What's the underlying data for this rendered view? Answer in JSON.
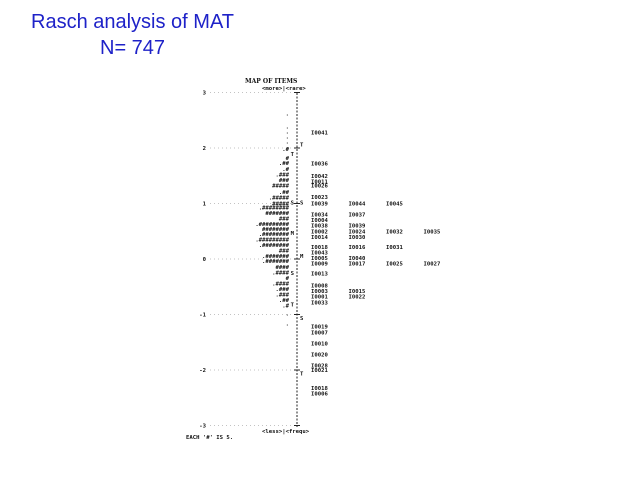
{
  "slide": {
    "title_line1": "Rasch analysis of MAT",
    "title_line2": "N= 747"
  },
  "map": {
    "header": "MAP OF ITEMS",
    "top_label": "<more>|<rare>",
    "bottom_label": "<less>|<frequ>",
    "footer": "EACH '#' IS 5.",
    "axis_ticks": [
      {
        "label": "3",
        "value": 3
      },
      {
        "label": "2",
        "value": 2
      },
      {
        "label": "1",
        "value": 1
      },
      {
        "label": "0",
        "value": 0
      },
      {
        "label": "-1",
        "value": -1
      },
      {
        "label": "-2",
        "value": -2
      },
      {
        "label": "-3",
        "value": -3
      }
    ],
    "person_markers": [
      {
        "label": "T",
        "value": 1.89
      },
      {
        "label": "S",
        "value": 1.02
      },
      {
        "label": "M",
        "value": 0.47
      },
      {
        "label": "S",
        "value": -0.25
      },
      {
        "label": "T",
        "value": -0.82
      }
    ],
    "item_markers": [
      {
        "label": "T",
        "value": 2.06
      },
      {
        "label": "S",
        "value": 1.02
      },
      {
        "label": "M",
        "value": 0.05
      },
      {
        "label": "S",
        "value": -1.06
      },
      {
        "label": "T",
        "value": -2.06
      }
    ],
    "persons": [
      {
        "value": 2.62,
        "text": "."
      },
      {
        "value": 2.39,
        "text": "."
      },
      {
        "value": 2.3,
        "text": "."
      },
      {
        "value": 2.21,
        "text": "."
      },
      {
        "value": 2.12,
        "text": "."
      },
      {
        "value": 2.04,
        "text": "."
      },
      {
        "value": 1.98,
        "text": ".#"
      },
      {
        "value": 1.82,
        "text": "#"
      },
      {
        "value": 1.73,
        "text": ".##"
      },
      {
        "value": 1.62,
        "text": ".#"
      },
      {
        "value": 1.52,
        "text": ".###"
      },
      {
        "value": 1.42,
        "text": "###"
      },
      {
        "value": 1.32,
        "text": "#####"
      },
      {
        "value": 1.21,
        "text": ".##"
      },
      {
        "value": 1.11,
        "text": ".#####"
      },
      {
        "value": 1.0,
        "text": "#####"
      },
      {
        "value": 0.93,
        "text": ".########"
      },
      {
        "value": 0.83,
        "text": "#######"
      },
      {
        "value": 0.73,
        "text": "###"
      },
      {
        "value": 0.63,
        "text": ".#########"
      },
      {
        "value": 0.54,
        "text": "########"
      },
      {
        "value": 0.45,
        "text": ".########"
      },
      {
        "value": 0.35,
        "text": ".#########"
      },
      {
        "value": 0.25,
        "text": ".########"
      },
      {
        "value": 0.15,
        "text": "###"
      },
      {
        "value": 0.05,
        "text": ".#######"
      },
      {
        "value": -0.04,
        "text": ".#######"
      },
      {
        "value": -0.14,
        "text": "####"
      },
      {
        "value": -0.24,
        "text": ".####"
      },
      {
        "value": -0.34,
        "text": "#"
      },
      {
        "value": -0.44,
        "text": ".####"
      },
      {
        "value": -0.54,
        "text": ".###"
      },
      {
        "value": -0.64,
        "text": ".###"
      },
      {
        "value": -0.74,
        "text": ".##"
      },
      {
        "value": -0.84,
        "text": ".#"
      },
      {
        "value": -0.98,
        "text": "."
      },
      {
        "value": -1.16,
        "text": "."
      }
    ],
    "item_rows": [
      {
        "value": 2.28,
        "items": [
          "I0041"
        ]
      },
      {
        "value": 1.72,
        "items": [
          "I0036"
        ]
      },
      {
        "value": 1.5,
        "items": [
          "I0042"
        ]
      },
      {
        "value": 1.4,
        "items": [
          "I0011"
        ]
      },
      {
        "value": 1.32,
        "items": [
          "I0026"
        ]
      },
      {
        "value": 1.12,
        "items": [
          "I0023"
        ]
      },
      {
        "value": 1.0,
        "items": [
          "I0039",
          "I0044",
          "I0045"
        ]
      },
      {
        "value": 0.8,
        "items": [
          "I0034",
          "I0037"
        ]
      },
      {
        "value": 0.7,
        "items": [
          "I0004"
        ]
      },
      {
        "value": 0.6,
        "items": [
          "I0038",
          "I0039"
        ]
      },
      {
        "value": 0.5,
        "items": [
          "I0002",
          "I0024",
          "I0032",
          "I0035"
        ]
      },
      {
        "value": 0.4,
        "items": [
          "I0014",
          "I0030"
        ]
      },
      {
        "value": 0.22,
        "items": [
          "I0018",
          "I0016",
          "I0031"
        ]
      },
      {
        "value": 0.12,
        "items": [
          "I0043"
        ]
      },
      {
        "value": 0.02,
        "items": [
          "I0005",
          "I0040"
        ]
      },
      {
        "value": -0.08,
        "items": [
          "I0009",
          "I0017",
          "I0025",
          "I0027"
        ]
      },
      {
        "value": -0.26,
        "items": [
          "I0013"
        ]
      },
      {
        "value": -0.48,
        "items": [
          "I0008"
        ]
      },
      {
        "value": -0.58,
        "items": [
          "I0003",
          "I0015"
        ]
      },
      {
        "value": -0.68,
        "items": [
          "I0001",
          "I0022"
        ]
      },
      {
        "value": -0.78,
        "items": [
          "I0033"
        ]
      },
      {
        "value": -1.22,
        "items": [
          "I0019"
        ]
      },
      {
        "value": -1.32,
        "items": [
          "I0007"
        ]
      },
      {
        "value": -1.52,
        "items": [
          "I0010"
        ]
      },
      {
        "value": -1.72,
        "items": [
          "I0020"
        ]
      },
      {
        "value": -1.92,
        "items": [
          "I0028"
        ]
      },
      {
        "value": -2.0,
        "items": [
          "I0021"
        ]
      },
      {
        "value": -2.32,
        "items": [
          "I0018"
        ]
      },
      {
        "value": -2.42,
        "items": [
          "I0006"
        ]
      }
    ]
  }
}
